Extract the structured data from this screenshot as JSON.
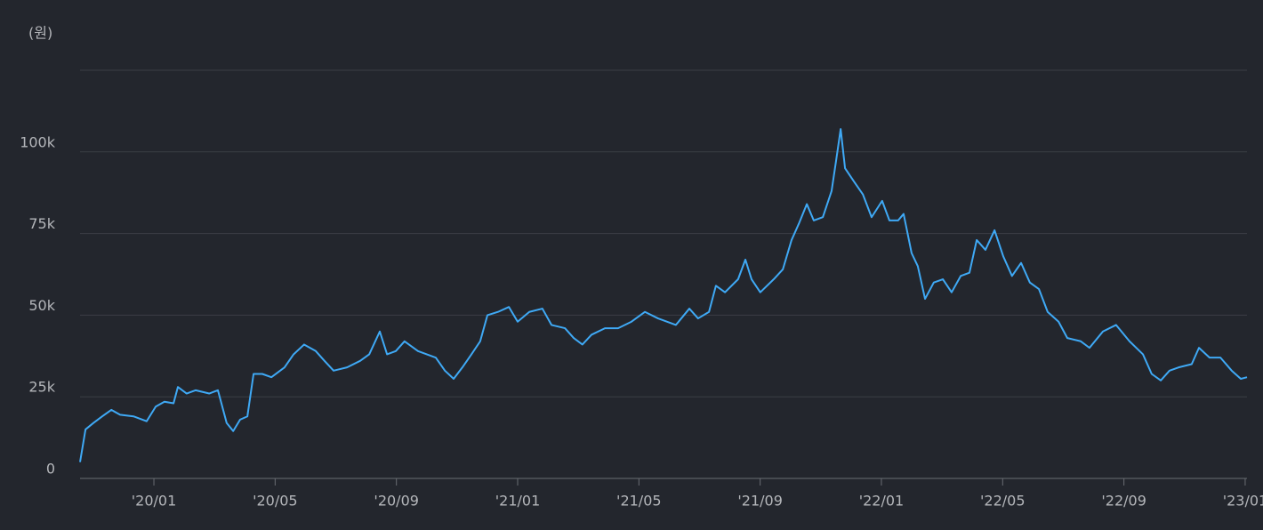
{
  "chart_data": {
    "type": "line",
    "y_label": "(원)",
    "color": "#3fa9f5",
    "grid": true,
    "xlim": [
      2019.797,
      2023.005
    ],
    "xticks": [
      {
        "value": 2020.0,
        "label": "'20/01"
      },
      {
        "value": 2020.3333,
        "label": "'20/05"
      },
      {
        "value": 2020.6667,
        "label": "'20/09"
      },
      {
        "value": 2021.0,
        "label": "'21/01"
      },
      {
        "value": 2021.3333,
        "label": "'21/05"
      },
      {
        "value": 2021.6667,
        "label": "'21/09"
      },
      {
        "value": 2022.0,
        "label": "'22/01"
      },
      {
        "value": 2022.3333,
        "label": "'22/05"
      },
      {
        "value": 2022.6667,
        "label": "'22/09"
      },
      {
        "value": 2023.0,
        "label": "'23/01"
      }
    ],
    "ylim": [
      0,
      125000
    ],
    "yticks": [
      0,
      {
        "value": 25000,
        "label": "25k"
      },
      {
        "value": 50000,
        "label": "50k"
      },
      {
        "value": 75000,
        "label": "75k"
      },
      {
        "value": 100000,
        "label": "100k"
      }
    ],
    "x": [
      2019.797,
      2019.812,
      2019.834,
      2019.858,
      2019.883,
      2019.907,
      2019.944,
      2019.98,
      2020.005,
      2020.029,
      2020.054,
      2020.066,
      2020.09,
      2020.115,
      2020.152,
      2020.176,
      2020.2,
      2020.218,
      2020.237,
      2020.257,
      2020.274,
      2020.298,
      2020.323,
      2020.359,
      2020.384,
      2020.413,
      2020.445,
      2020.469,
      2020.494,
      2020.531,
      2020.567,
      2020.592,
      2020.621,
      2020.641,
      2020.665,
      2020.689,
      2020.726,
      2020.775,
      2020.8,
      2020.824,
      2020.848,
      2020.873,
      2020.897,
      2020.917,
      2020.946,
      2020.976,
      2021.0,
      2021.032,
      2021.068,
      2021.093,
      2021.13,
      2021.154,
      2021.178,
      2021.203,
      2021.24,
      2021.276,
      2021.313,
      2021.35,
      2021.386,
      2021.435,
      2021.472,
      2021.496,
      2021.526,
      2021.545,
      2021.57,
      2021.606,
      2021.626,
      2021.643,
      2021.667,
      2021.704,
      2021.729,
      2021.753,
      2021.773,
      2021.795,
      2021.814,
      2021.839,
      2021.863,
      2021.875,
      2021.888,
      2021.9,
      2021.924,
      2021.949,
      2021.973,
      2022.002,
      2022.022,
      2022.046,
      2022.061,
      2022.083,
      2022.1,
      2022.12,
      2022.144,
      2022.169,
      2022.193,
      2022.218,
      2022.242,
      2022.262,
      2022.286,
      2022.311,
      2022.335,
      2022.359,
      2022.384,
      2022.408,
      2022.433,
      2022.457,
      2022.487,
      2022.511,
      2022.548,
      2022.572,
      2022.609,
      2022.645,
      2022.682,
      2022.719,
      2022.743,
      2022.768,
      2022.792,
      2022.817,
      2022.853,
      2022.873,
      2022.902,
      2022.932,
      2022.963,
      2022.988,
      2023.005
    ],
    "values": [
      5000,
      15000,
      17000,
      19000,
      21000,
      19500,
      19000,
      17500,
      22000,
      23500,
      23000,
      28000,
      26000,
      27000,
      26000,
      27000,
      17000,
      14500,
      18000,
      19000,
      32000,
      32000,
      31000,
      34000,
      38000,
      41000,
      39000,
      36000,
      33000,
      34000,
      36000,
      38000,
      45000,
      38000,
      39000,
      42000,
      39000,
      37000,
      33000,
      30500,
      34000,
      38000,
      42000,
      50000,
      51000,
      52500,
      48000,
      51000,
      52000,
      47000,
      46000,
      43000,
      41000,
      44000,
      46000,
      46000,
      48000,
      51000,
      49000,
      47000,
      52000,
      49000,
      51000,
      59000,
      57000,
      61000,
      67000,
      61000,
      57000,
      61000,
      64000,
      73000,
      78000,
      84000,
      79000,
      80000,
      88000,
      97000,
      107000,
      95000,
      91000,
      87000,
      80000,
      85000,
      79000,
      79000,
      81000,
      69000,
      65000,
      55000,
      60000,
      61000,
      57000,
      62000,
      63000,
      73000,
      70000,
      76000,
      68000,
      62000,
      66000,
      60000,
      58000,
      51000,
      48000,
      43000,
      42000,
      40000,
      45000,
      47000,
      42000,
      38000,
      32000,
      30000,
      33000,
      34000,
      35000,
      40000,
      37000,
      37000,
      33000,
      30500,
      31000
    ]
  }
}
